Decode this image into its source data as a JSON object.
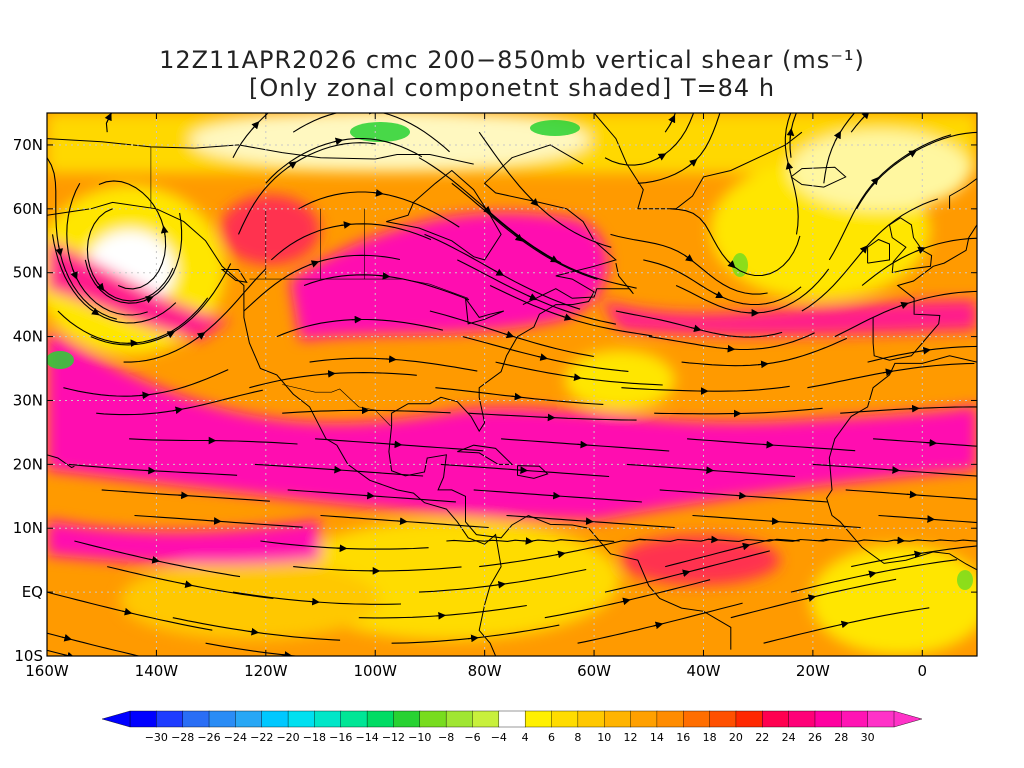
{
  "title": {
    "line1": "12Z11APR2026 cmc 200−850mb vertical shear (ms⁻¹)",
    "line2": "[Only zonal componetnt shaded] T=84 h"
  },
  "map": {
    "lat_range": [
      -10,
      75
    ],
    "lon_range": [
      -160,
      10
    ],
    "lat_ticks": [
      {
        "value": 70,
        "label": "70N"
      },
      {
        "value": 60,
        "label": "60N"
      },
      {
        "value": 50,
        "label": "50N"
      },
      {
        "value": 40,
        "label": "40N"
      },
      {
        "value": 30,
        "label": "30N"
      },
      {
        "value": 20,
        "label": "20N"
      },
      {
        "value": 10,
        "label": "10N"
      },
      {
        "value": 0,
        "label": "EQ"
      },
      {
        "value": -10,
        "label": "10S"
      }
    ],
    "lon_ticks": [
      {
        "value": -160,
        "label": "160W"
      },
      {
        "value": -140,
        "label": "140W"
      },
      {
        "value": -120,
        "label": "120W"
      },
      {
        "value": -100,
        "label": "100W"
      },
      {
        "value": -80,
        "label": "80W"
      },
      {
        "value": -60,
        "label": "60W"
      },
      {
        "value": -40,
        "label": "40W"
      },
      {
        "value": -20,
        "label": "20W"
      },
      {
        "value": 0,
        "label": "0"
      }
    ],
    "grid": true
  },
  "colorbar": {
    "min": -30,
    "max": 30,
    "labels": [
      "−30",
      "−28",
      "−26",
      "−24",
      "−22",
      "−20",
      "−18",
      "−16",
      "−14",
      "−12",
      "−10",
      "−8",
      "−6",
      "−4",
      "4",
      "6",
      "8",
      "10",
      "12",
      "14",
      "16",
      "18",
      "20",
      "22",
      "24",
      "26",
      "28",
      "30"
    ],
    "colors": [
      "#0000ff",
      "#1e3cff",
      "#2a6ef5",
      "#2a8cf5",
      "#28a7f5",
      "#00c8ff",
      "#00e0f0",
      "#00e6c8",
      "#00e696",
      "#00dc64",
      "#28d232",
      "#78dc1e",
      "#a0e632",
      "#c8f03c",
      "#ffffff",
      "#fff000",
      "#ffdc00",
      "#ffc800",
      "#ffb400",
      "#ffa000",
      "#ff8c00",
      "#ff6e00",
      "#ff5000",
      "#ff2800",
      "#ff0050",
      "#ff0078",
      "#ff00a0",
      "#ff14b4",
      "#ff32c8"
    ]
  }
}
